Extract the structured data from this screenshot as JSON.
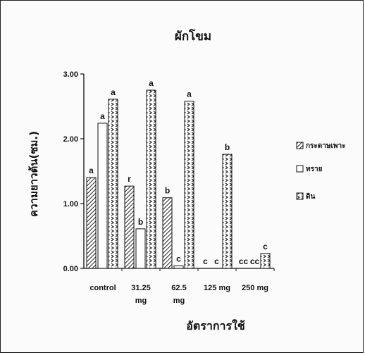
{
  "chart_data": {
    "type": "bar",
    "title": "ผักโขม",
    "xlabel": "อัตราการใช้",
    "ylabel": "ความยาวต้น(ซม.)",
    "ylim": [
      0,
      3
    ],
    "yticks": [
      "0.00",
      "1.00",
      "2.00",
      "3.00"
    ],
    "categories": [
      "control",
      "31.25 mg",
      "62.5 mg",
      "125 mg",
      "250 mg"
    ],
    "series": [
      {
        "name": "กระดาษเพาะ",
        "values": [
          1.4,
          1.27,
          1.09,
          0,
          0
        ],
        "letters": [
          "a",
          "r",
          "b",
          "c",
          "cc"
        ],
        "pattern": "diagonal-hatch"
      },
      {
        "name": "ทราย",
        "values": [
          2.24,
          0.61,
          0.04,
          0,
          0
        ],
        "letters": [
          "a",
          "b",
          "c",
          "c",
          "cc"
        ],
        "pattern": "plain"
      },
      {
        "name": "ดิน",
        "values": [
          2.61,
          2.75,
          2.58,
          1.76,
          0.23
        ],
        "letters": [
          "a",
          "a",
          "a",
          "b",
          "c"
        ],
        "pattern": "chevron"
      }
    ],
    "grid": false,
    "legend_position": "right"
  }
}
